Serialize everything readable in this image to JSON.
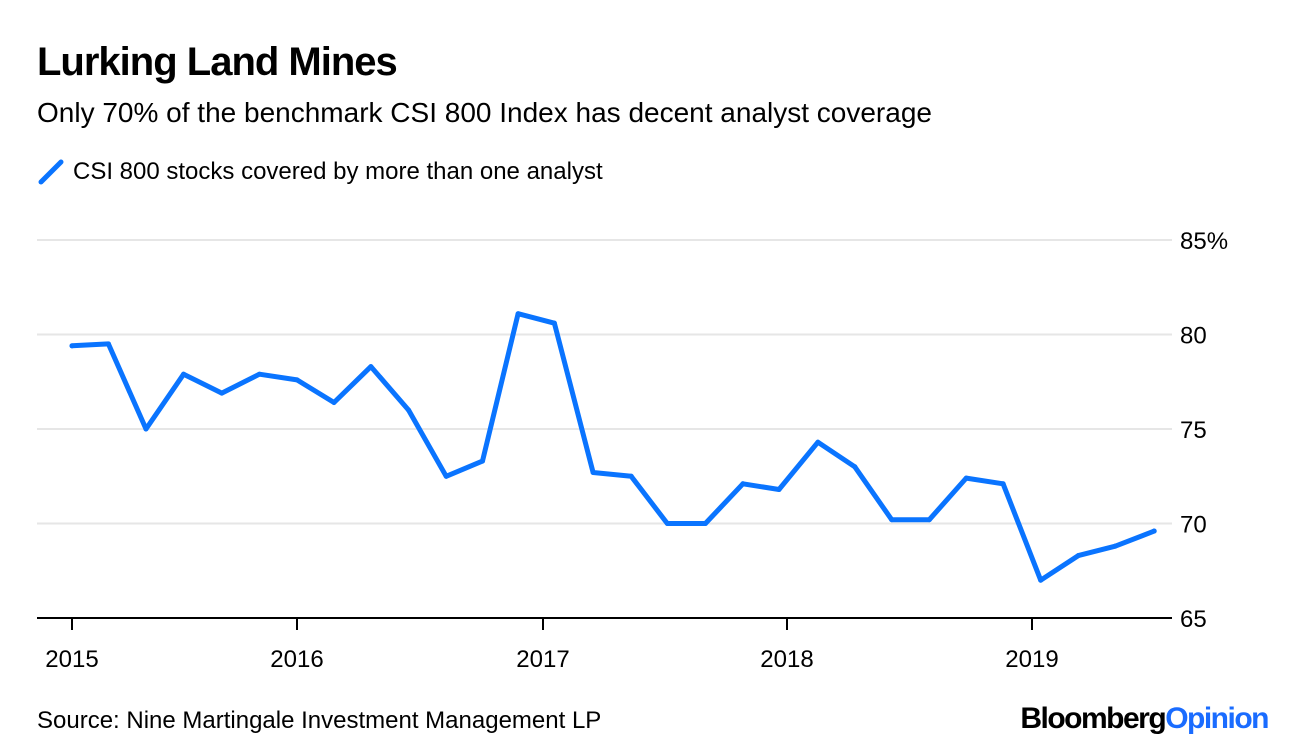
{
  "header": {
    "title": "Lurking Land Mines",
    "subtitle": "Only 70% of the benchmark CSI 800 Index has decent analyst coverage"
  },
  "footer": {
    "source": "Source: Nine Martingale Investment Management LP",
    "logo_text": "Bloomberg",
    "logo_accent": "Opinion"
  },
  "colors": {
    "series": "#0a74ff",
    "grid": "#e6e6e6",
    "axis": "#000000",
    "logo_accent": "#1a6cff"
  },
  "chart_data": {
    "type": "line",
    "xlabel": "",
    "ylabel": "",
    "ylim": [
      65,
      85
    ],
    "y_ticks": [
      "85%",
      "80",
      "75",
      "70",
      "65"
    ],
    "y_tick_values": [
      85,
      80,
      75,
      70,
      65
    ],
    "x_ticks": [
      "2015",
      "2016",
      "2017",
      "2018",
      "2019"
    ],
    "grid": true,
    "y_axis_position": "right",
    "legend": "top-left",
    "series": [
      {
        "name": "CSI 800 stocks covered by more than one analyst",
        "x": [
          "2015-01-01",
          "2015-03-01",
          "2015-05-01",
          "2015-07-01",
          "2015-09-01",
          "2015-11-01",
          "2016-01-01",
          "2016-02-25",
          "2016-04-20",
          "2016-06-15",
          "2016-08-10",
          "2016-10-03",
          "2016-11-25",
          "2017-01-18",
          "2017-03-17",
          "2017-05-13",
          "2017-07-06",
          "2017-09-01",
          "2017-10-27",
          "2017-12-20",
          "2018-02-16",
          "2018-04-12",
          "2018-06-06",
          "2018-08-01",
          "2018-09-25",
          "2018-11-19",
          "2019-01-14",
          "2019-03-11",
          "2019-05-05",
          "2019-07-02"
        ],
        "values": [
          79.4,
          79.5,
          75.0,
          77.9,
          76.9,
          77.9,
          77.6,
          76.4,
          78.3,
          76.0,
          72.5,
          73.3,
          81.1,
          80.6,
          72.7,
          72.5,
          70.0,
          70.0,
          72.1,
          71.8,
          74.3,
          73.0,
          70.2,
          70.2,
          72.4,
          72.1,
          67.0,
          68.3,
          68.8,
          69.6
        ]
      }
    ]
  }
}
